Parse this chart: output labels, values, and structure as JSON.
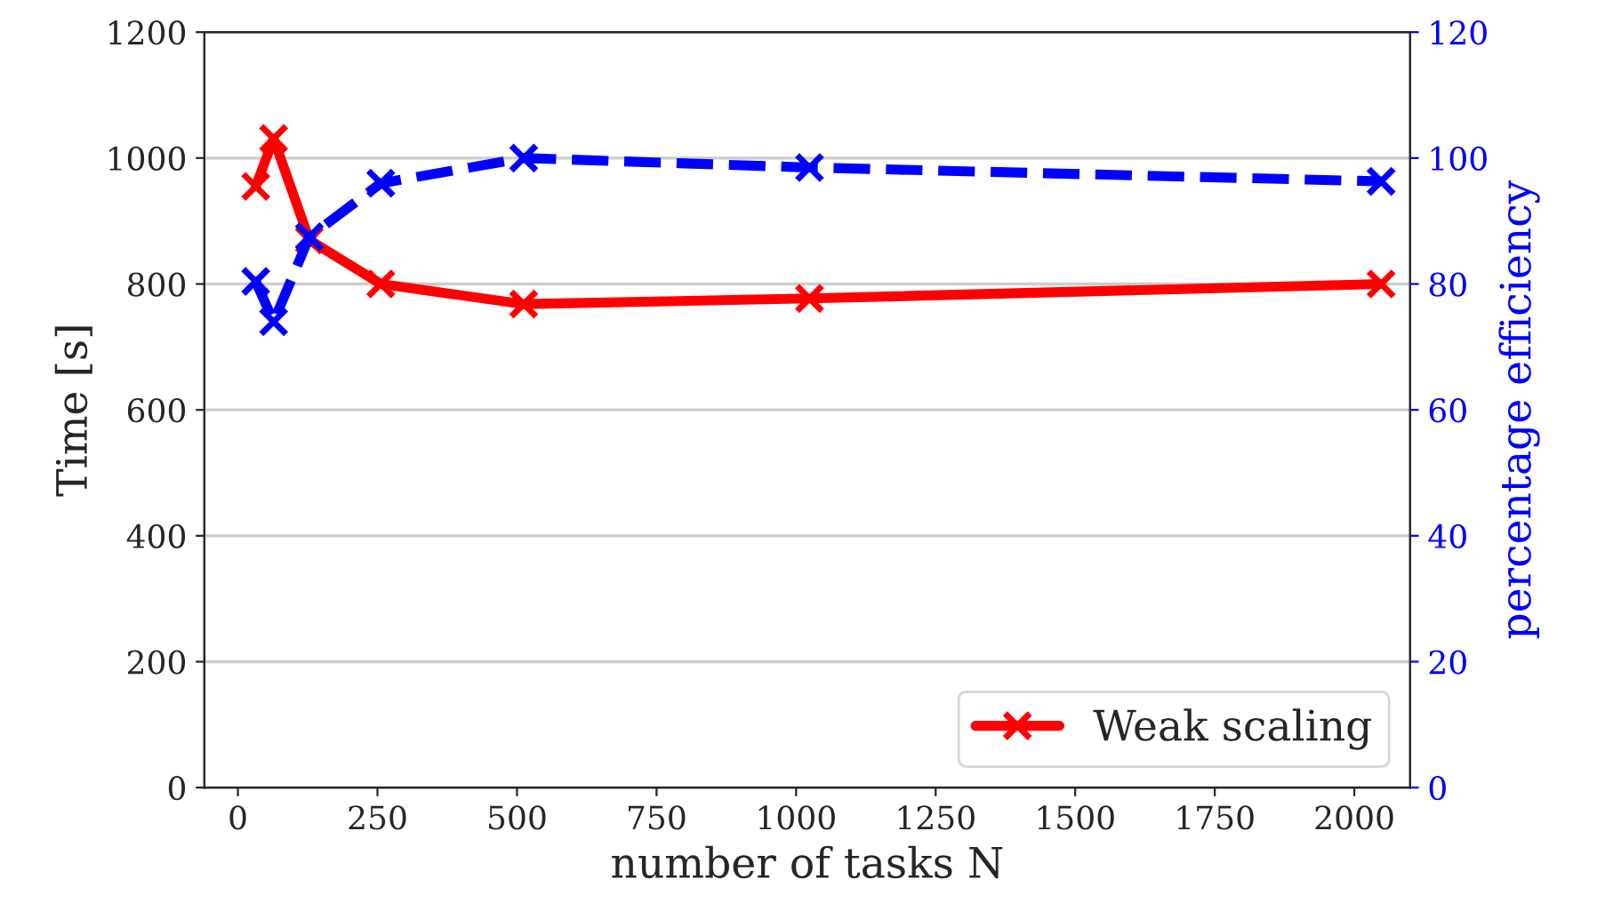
{
  "chart_data": {
    "type": "line",
    "xlabel": "number of tasks N",
    "ylabel": "Time [s]",
    "y2label": "percentage efficiency",
    "x": [
      32,
      64,
      128,
      256,
      512,
      1024,
      2048
    ],
    "series": [
      {
        "name": "Weak scaling",
        "color": "#ff0000",
        "values": [
          955,
          1031,
          870,
          800,
          768,
          777,
          800
        ],
        "line_style": "solid"
      },
      {
        "color": "#0000ff",
        "values": [
          80.4,
          74,
          87.5,
          96,
          100,
          98.5,
          96.3
        ],
        "axis": "y2",
        "line_style": "dashed"
      }
    ],
    "xlim": [
      -60,
      2100
    ],
    "xticks": [
      0,
      250,
      500,
      750,
      1000,
      1250,
      1500,
      1750,
      2000
    ],
    "ylim": [
      0,
      1200
    ],
    "yticks": [
      0,
      200,
      400,
      600,
      800,
      1000,
      1200
    ],
    "y2lim": [
      0,
      120
    ],
    "y2ticks": [
      0,
      20,
      40,
      60,
      80,
      100,
      120
    ],
    "grid": "y",
    "legend": "bottom right",
    "marker": "cross"
  }
}
